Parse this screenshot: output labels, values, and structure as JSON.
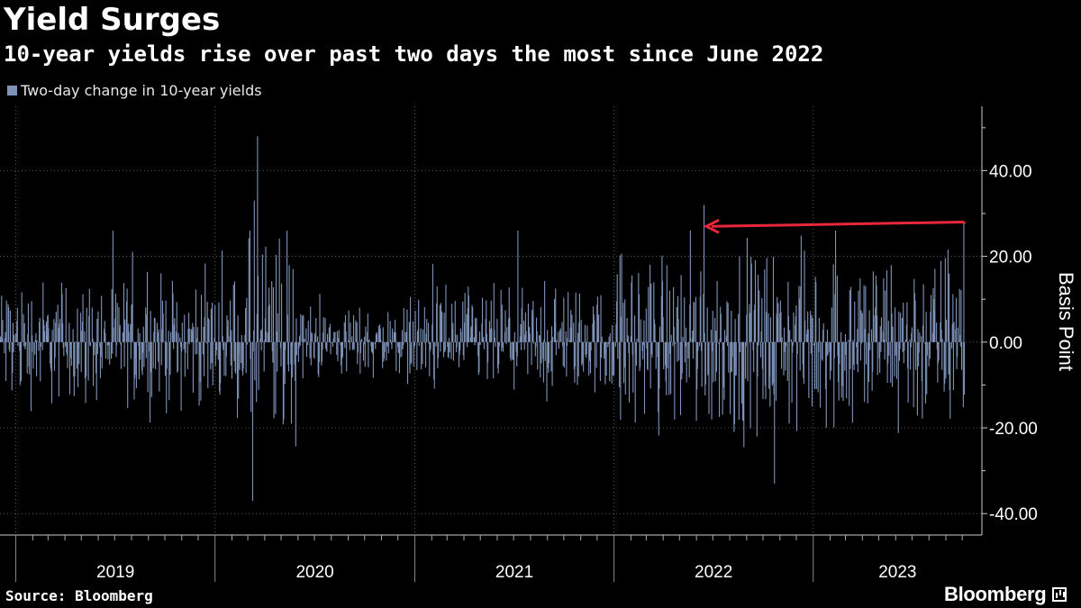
{
  "title": "Yield Surges",
  "subtitle": "10-year yields rise over past two days the most since June 2022",
  "source": "Source: Bloomberg",
  "brand": "Bloomberg",
  "colors": {
    "background": "#000000",
    "bars": "#7f93b8",
    "arrow": "#e8273b",
    "grid": "#5a5a5a",
    "axis": "#cccccc"
  },
  "chart_data": {
    "type": "bar",
    "title": "Yield Surges",
    "subtitle": "10-year yields rise over past two days the most since June 2022",
    "series": [
      {
        "name": "Two-day change in 10-year yields"
      }
    ],
    "ylabel": "Basis Point",
    "ylim": [
      -45,
      55
    ],
    "y_ticks": [
      40,
      20,
      0,
      -20,
      -40
    ],
    "y_tick_labels": [
      "40.00",
      "20.00",
      "0.00",
      "-20.00",
      "-40.00"
    ],
    "y_axis_position": "right",
    "x_categories": [
      "2019",
      "2020",
      "2021",
      "2022",
      "2023"
    ],
    "x_range": [
      "2018-12-03",
      "2023-10-04"
    ],
    "grid": true,
    "legend_position": "top-left",
    "notable_points": [
      {
        "x": "2020-03-18",
        "y": 48
      },
      {
        "x": "2020-03-09",
        "y": -37
      },
      {
        "x": "2020-03-12",
        "y": 33
      },
      {
        "x": "2022-06-14",
        "y": 32
      },
      {
        "x": "2022-10-21",
        "y": -33
      },
      {
        "x": "2023-10-03",
        "y": 28
      }
    ],
    "annotation": {
      "type": "arrow",
      "from": {
        "x": "2023-10-03",
        "y": 28
      },
      "to": {
        "x": "2022-06-14",
        "y": 27
      }
    }
  }
}
